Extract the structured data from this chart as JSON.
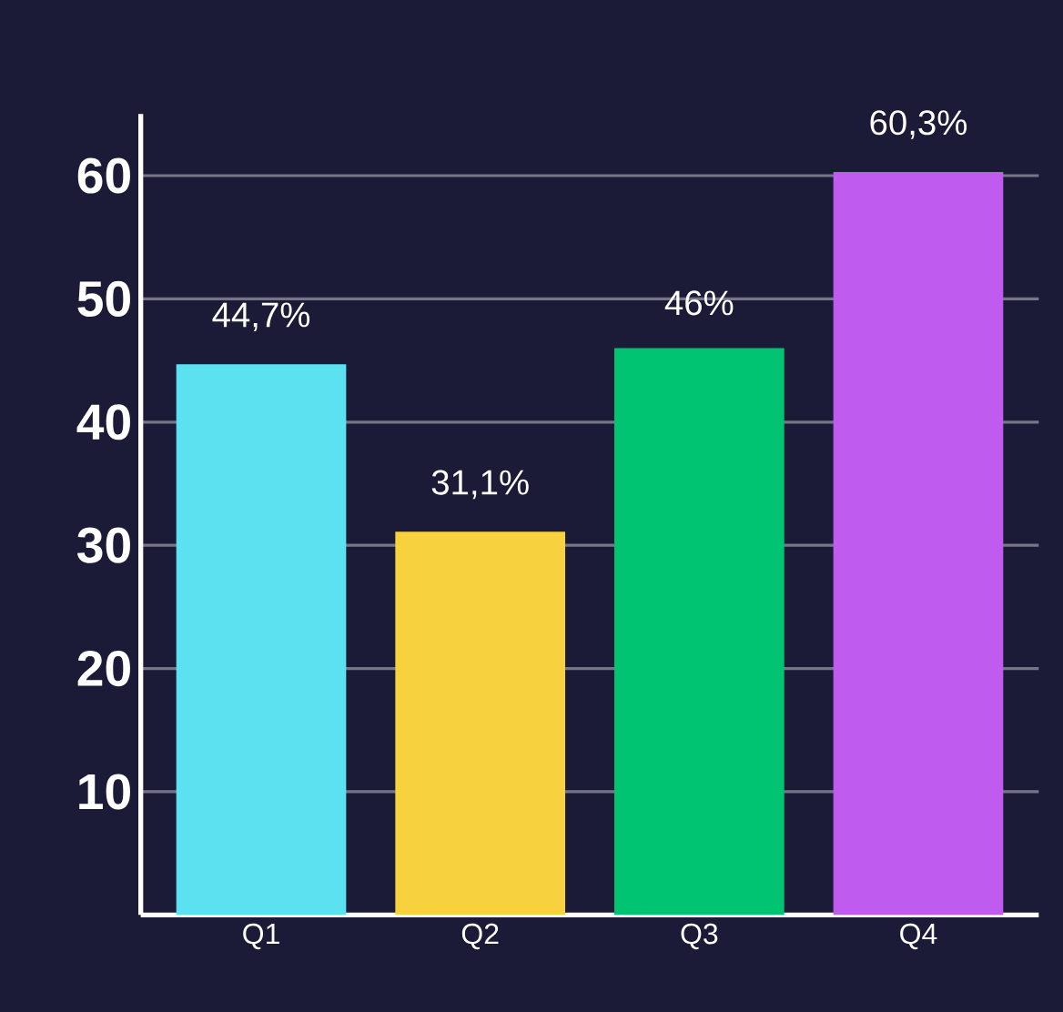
{
  "chart_data": {
    "type": "bar",
    "categories": [
      "Q1",
      "Q2",
      "Q3",
      "Q4"
    ],
    "values": [
      44.7,
      31.1,
      46,
      60.3
    ],
    "colors": [
      "#5ce1f0",
      "#f7d23e",
      "#00c472",
      "#c05bf0"
    ],
    "value_labels": [
      "44,7%",
      "31,1%",
      "46%",
      "60,3%"
    ],
    "ylim": [
      0,
      65
    ],
    "yticks": [
      10,
      20,
      30,
      40,
      50,
      60
    ],
    "grid": "y"
  }
}
